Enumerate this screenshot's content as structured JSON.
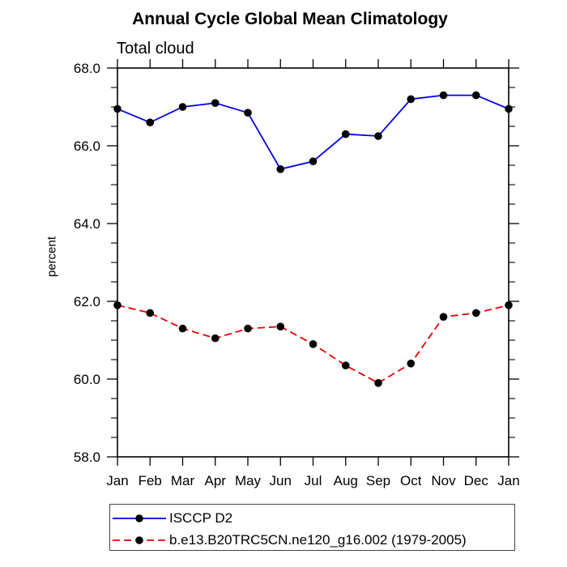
{
  "chart": {
    "title": "Annual Cycle Global Mean Climatology",
    "subtitle": "Total cloud",
    "ylabel": "percent"
  },
  "chart_data": {
    "type": "line",
    "x_categories": [
      "Jan",
      "Feb",
      "Mar",
      "Apr",
      "May",
      "Jun",
      "Jul",
      "Aug",
      "Sep",
      "Oct",
      "Nov",
      "Dec",
      "Jan"
    ],
    "series": [
      {
        "name": "ISCCP D2",
        "color": "#0000ee",
        "line_style": "solid",
        "marker": "circle",
        "marker_color": "#000000",
        "values": [
          66.95,
          66.6,
          67.0,
          67.1,
          66.85,
          65.4,
          65.6,
          66.3,
          66.25,
          67.2,
          67.3,
          67.3,
          66.95
        ]
      },
      {
        "name": "b.e13.B20TRC5CN.ne120_g16.002 (1979-2005)",
        "color": "#ee0000",
        "line_style": "dashed",
        "marker": "circle",
        "marker_color": "#000000",
        "values": [
          61.9,
          61.7,
          61.3,
          61.05,
          61.3,
          61.35,
          60.9,
          60.35,
          59.9,
          60.4,
          61.6,
          61.7,
          61.9
        ]
      }
    ],
    "ylim": [
      58.0,
      68.0
    ],
    "y_major_ticks": [
      58.0,
      60.0,
      62.0,
      64.0,
      66.0,
      68.0
    ],
    "y_tick_labels": [
      "58.0",
      "60.0",
      "62.0",
      "64.0",
      "66.0",
      "68.0"
    ],
    "y_minor_step": 0.5,
    "xlabel": "",
    "ylabel": "percent",
    "title": "Annual Cycle Global Mean Climatology",
    "subtitle": "Total cloud",
    "grid": false,
    "axis_color": "#000000",
    "legend_position": "bottom"
  }
}
